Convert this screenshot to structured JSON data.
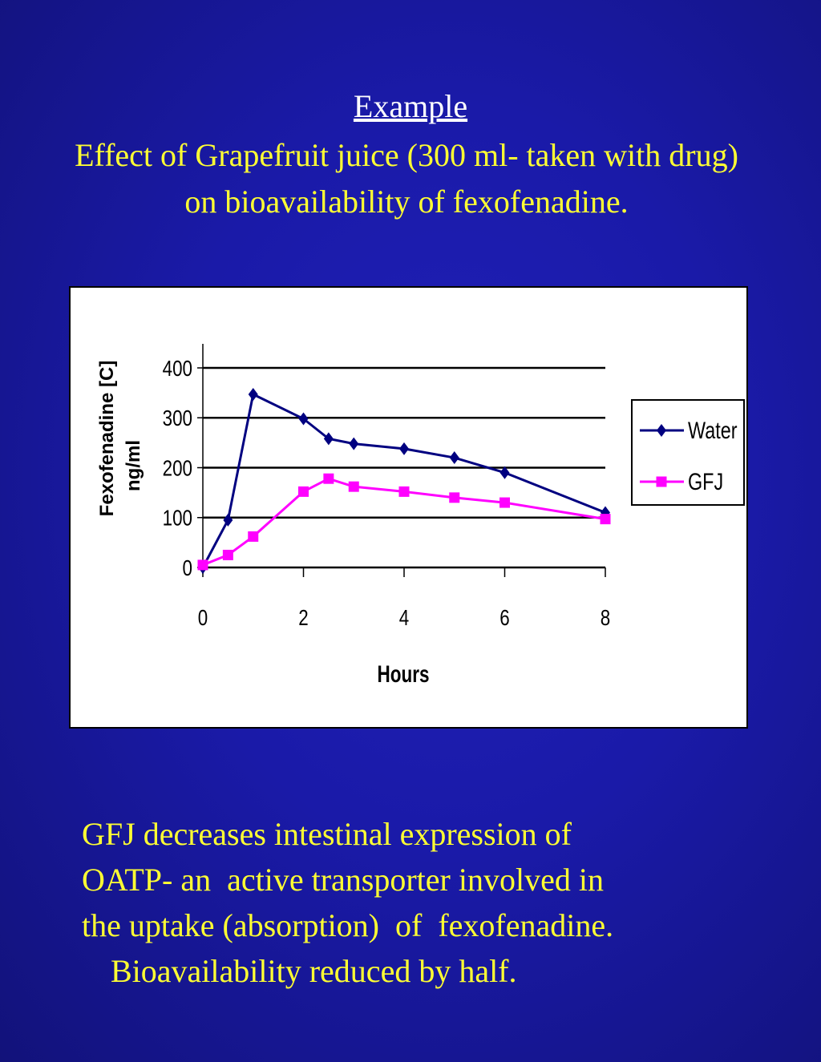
{
  "slide": {
    "heading": "Example",
    "title": "Effect of Grapefruit juice (300 ml- taken with drug) on bioavailability of fexofenadine.",
    "body_lines": [
      "GFJ decreases intestinal expression of",
      "OATP- an  active transporter involved in",
      "the uptake (absorption)  of  fexofenadine.",
      "Bioavailability reduced by half."
    ]
  },
  "chart_data": {
    "type": "line",
    "xlabel": "Hours",
    "ylabel": "Fexofenadine [C] ng/ml",
    "ylabel_lines": [
      "Fexofenadine [C]",
      "ng/ml"
    ],
    "xlim": [
      0,
      8
    ],
    "ylim": [
      0,
      400
    ],
    "x_ticks": [
      0,
      2,
      4,
      6,
      8
    ],
    "y_ticks": [
      0,
      100,
      200,
      300,
      400
    ],
    "grid": true,
    "legend_position": "right",
    "series": [
      {
        "name": "Water",
        "color": "#000080",
        "marker": "diamond",
        "x": [
          0,
          0.5,
          1,
          2,
          2.5,
          3,
          4,
          5,
          6,
          8
        ],
        "y": [
          0,
          95,
          347,
          298,
          258,
          248,
          238,
          220,
          190,
          110
        ]
      },
      {
        "name": "GFJ",
        "color": "#ff00ff",
        "marker": "square",
        "x": [
          0,
          0.5,
          1,
          2,
          2.5,
          3,
          4,
          5,
          6,
          8
        ],
        "y": [
          5,
          25,
          62,
          152,
          178,
          162,
          152,
          140,
          130,
          97
        ]
      }
    ]
  }
}
